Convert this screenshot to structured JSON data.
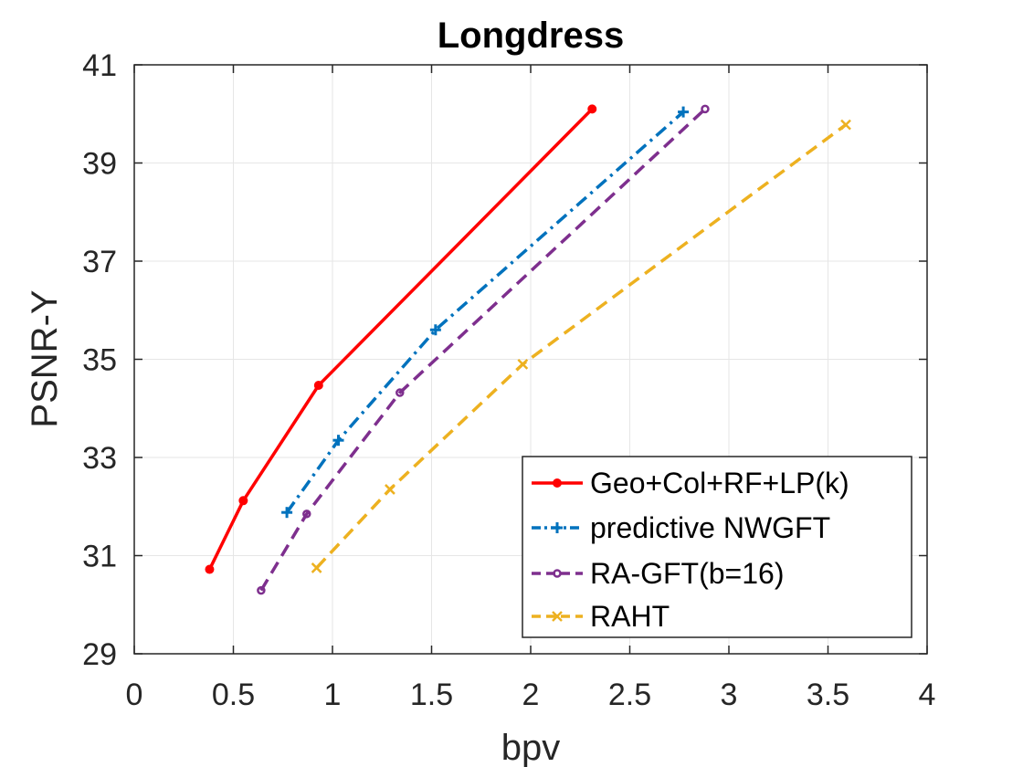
{
  "chart_data": {
    "type": "line",
    "title": "Longdress",
    "xlabel": "bpv",
    "ylabel": "PSNR-Y",
    "xlim": [
      0,
      4
    ],
    "ylim": [
      29,
      41
    ],
    "xticks": [
      0,
      0.5,
      1,
      1.5,
      2,
      2.5,
      3,
      3.5,
      4
    ],
    "xtick_labels": [
      "0",
      "0.5",
      "1",
      "1.5",
      "2",
      "2.5",
      "3",
      "3.5",
      "4"
    ],
    "yticks": [
      29,
      31,
      33,
      35,
      37,
      39,
      41
    ],
    "ytick_labels": [
      "29",
      "31",
      "33",
      "35",
      "37",
      "39",
      "41"
    ],
    "grid": true,
    "legend_position": "bottom-right",
    "series": [
      {
        "name": "Geo+Col+RF+LP(k)",
        "color": "#ff0000",
        "line_style": "solid",
        "marker": "circle-filled",
        "x": [
          0.38,
          0.55,
          0.93,
          2.31
        ],
        "y": [
          30.72,
          32.12,
          34.47,
          40.1
        ]
      },
      {
        "name": "predictive NWGFT",
        "color": "#0072bd",
        "line_style": "dashdot",
        "marker": "plus",
        "x": [
          0.77,
          1.03,
          1.52,
          2.77
        ],
        "y": [
          31.88,
          33.35,
          35.6,
          40.04
        ]
      },
      {
        "name": "RA-GFT(b=16)",
        "color": "#7e2f8e",
        "line_style": "dashed",
        "marker": "circle",
        "x": [
          0.64,
          0.87,
          1.34,
          2.88
        ],
        "y": [
          30.29,
          31.85,
          34.32,
          40.1
        ]
      },
      {
        "name": "RAHT",
        "color": "#edb120",
        "line_style": "dashed",
        "marker": "x",
        "x": [
          0.92,
          1.29,
          1.96,
          3.59
        ],
        "y": [
          30.75,
          32.35,
          34.9,
          39.78
        ]
      }
    ]
  }
}
